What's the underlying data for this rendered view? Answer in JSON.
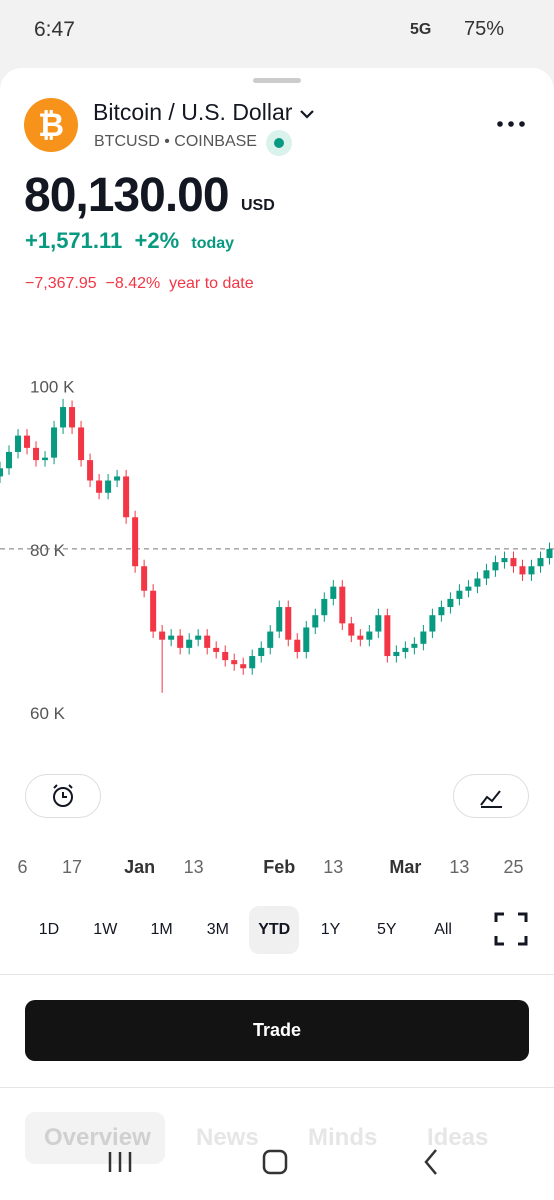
{
  "status_bar": {
    "time": "6:47",
    "network": "5G",
    "battery": "75%"
  },
  "header": {
    "logo": "₿",
    "title": "Bitcoin / U.S. Dollar",
    "symbol": "BTCUSD",
    "exchange": "COINBASE",
    "price": "80,130.00",
    "currency": "USD",
    "change": "+1,571.11",
    "change_pct": "+2%",
    "change_period": "today",
    "ytd_change": "−7,367.95",
    "ytd_change_pct": "−8.42%",
    "ytd_period": "year to date"
  },
  "chart_data": {
    "type": "candlestick",
    "x": [
      -31,
      -29,
      -27,
      -25,
      -23,
      -21,
      -19,
      -17,
      -15,
      -13,
      -11,
      -9,
      -7,
      -5,
      -3,
      -1,
      1,
      3,
      5,
      7,
      9,
      11,
      13,
      15,
      17,
      19,
      21,
      23,
      25,
      27,
      29,
      31,
      33,
      35,
      37,
      39,
      41,
      43,
      45,
      47,
      49,
      51,
      53,
      55,
      57,
      59,
      61,
      63,
      65,
      67,
      69,
      71,
      73,
      75,
      77,
      79,
      81,
      83,
      85,
      87,
      89,
      91
    ],
    "open": [
      89,
      90,
      92,
      94,
      92.5,
      91,
      91.3,
      95,
      97.5,
      95,
      91,
      88.5,
      87,
      88.5,
      89,
      84,
      78,
      75,
      70,
      69,
      69.5,
      68,
      69,
      69.5,
      68,
      67.5,
      66.5,
      66,
      65.5,
      67,
      68,
      70,
      73,
      69,
      67.5,
      70.5,
      72,
      74,
      75.5,
      71,
      69.5,
      69,
      70,
      72,
      67,
      67.5,
      68,
      68.5,
      70,
      72,
      73,
      74,
      75,
      75.5,
      76.5,
      77.5,
      78.5,
      79,
      78,
      77,
      78,
      79
    ],
    "high": [
      90.8,
      92.8,
      94.8,
      94.8,
      93.3,
      92.1,
      95.8,
      98.5,
      98.3,
      95.8,
      91.8,
      89.3,
      89.3,
      89.8,
      89.8,
      84.8,
      78.8,
      75.8,
      70.8,
      70.3,
      70.3,
      69.8,
      70.3,
      70.3,
      68.8,
      68.3,
      67.3,
      66.8,
      67.8,
      68.8,
      70.8,
      73.8,
      73.8,
      69.8,
      71.3,
      72.8,
      74.8,
      76.3,
      76.3,
      71.8,
      70.3,
      70.8,
      72.8,
      72.8,
      68.3,
      68.8,
      69.3,
      70.8,
      72.8,
      73.8,
      74.8,
      75.8,
      76.3,
      77.3,
      78.3,
      79.3,
      79.8,
      79.8,
      78.8,
      78.8,
      79.8,
      80.9
    ],
    "low": [
      88.2,
      89.2,
      91.2,
      91.7,
      90.2,
      90.2,
      90.5,
      94.2,
      94.2,
      90.2,
      87.7,
      86.2,
      86.2,
      87.7,
      83.2,
      77.2,
      74.2,
      69.2,
      62.5,
      68.2,
      67.2,
      67.2,
      68.2,
      67.2,
      66.7,
      65.7,
      65.2,
      64.7,
      64.7,
      66.2,
      67.2,
      69.2,
      68.2,
      66.7,
      66.7,
      69.7,
      71.2,
      73.2,
      70.2,
      68.7,
      68.2,
      68.2,
      69.2,
      66.2,
      66.2,
      66.7,
      67.2,
      67.7,
      69.2,
      71.2,
      72.2,
      73.2,
      74.2,
      74.7,
      75.7,
      76.7,
      77.7,
      77.2,
      76.2,
      76.2,
      77.2,
      78.2
    ],
    "close": [
      90,
      92,
      94,
      92.5,
      91,
      91.3,
      95,
      97.5,
      95,
      91,
      88.5,
      87,
      88.5,
      89,
      84,
      78,
      75,
      70,
      69,
      69.5,
      68,
      69,
      69.5,
      68,
      67.5,
      66.5,
      66,
      65.5,
      67,
      68,
      70,
      73,
      69,
      67.5,
      70.5,
      72,
      74,
      75.5,
      71,
      69.5,
      69,
      70,
      72,
      67,
      67.5,
      68,
      68.5,
      70,
      72,
      73,
      74,
      75,
      75.5,
      76.5,
      77.5,
      78.5,
      79,
      78,
      77,
      78,
      79,
      80.13
    ],
    "up_color": "#089981",
    "down_color": "#f23645",
    "xlim": [
      -31,
      92
    ],
    "xticks": [
      {
        "value": -26,
        "label": "6"
      },
      {
        "value": -15,
        "label": "17"
      },
      {
        "value": 0,
        "label": "Jan"
      },
      {
        "value": 12,
        "label": "13"
      },
      {
        "value": 31,
        "label": "Feb"
      },
      {
        "value": 43,
        "label": "13"
      },
      {
        "value": 59,
        "label": "Mar"
      },
      {
        "value": 71,
        "label": "13"
      },
      {
        "value": 83,
        "label": "25"
      }
    ],
    "ylim": [
      55,
      110
    ],
    "yticks": [
      {
        "value": 100,
        "label": "100 K"
      },
      {
        "value": 80,
        "label": "80 K"
      },
      {
        "value": 60,
        "label": "60 K"
      }
    ]
  },
  "ranges": [
    "1D",
    "1W",
    "1M",
    "3M",
    "YTD",
    "1Y",
    "5Y",
    "All"
  ],
  "trade_button": "Trade",
  "tabs": [
    "Overview",
    "News",
    "Minds",
    "Ideas"
  ]
}
